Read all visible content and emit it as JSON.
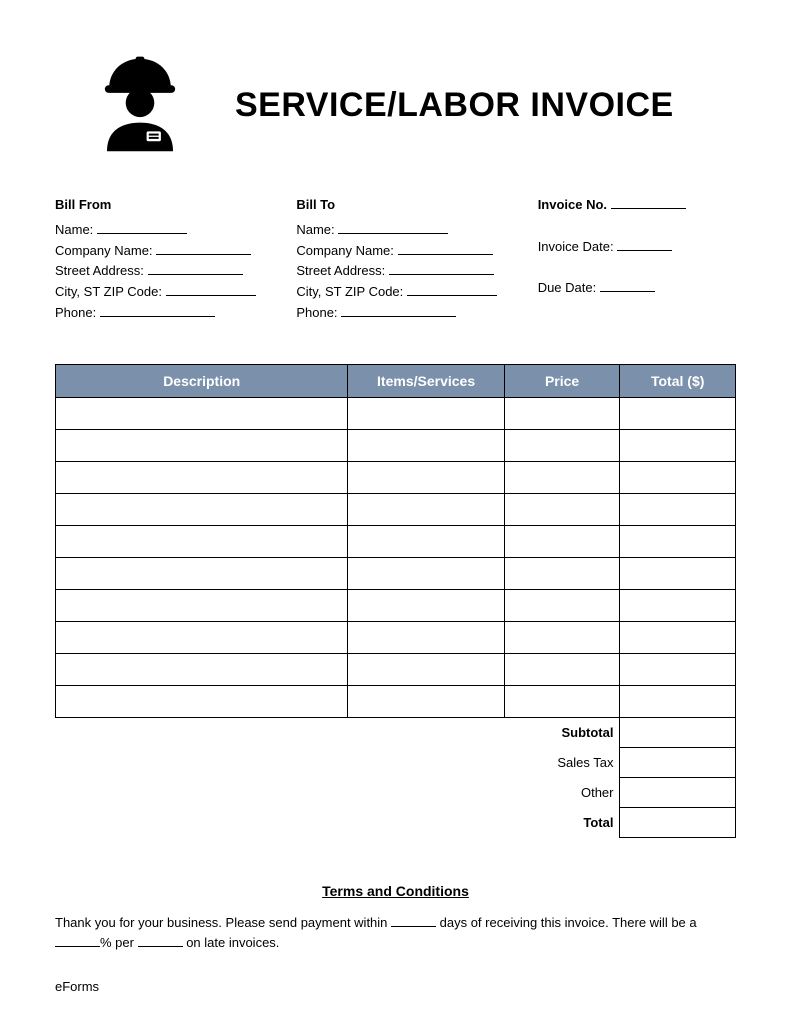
{
  "title": "SERVICE/LABOR INVOICE",
  "billFrom": {
    "heading": "Bill From",
    "nameLabel": "Name:",
    "companyLabel": "Company Name:",
    "streetLabel": "Street Address:",
    "cityLabel": "City, ST ZIP Code:",
    "phoneLabel": "Phone:"
  },
  "billTo": {
    "heading": "Bill To",
    "nameLabel": "Name:",
    "companyLabel": "Company Name:",
    "streetLabel": "Street Address:",
    "cityLabel": "City, ST ZIP Code:",
    "phoneLabel": "Phone:"
  },
  "meta": {
    "invoiceNoLabel": "Invoice No.",
    "invoiceDateLabel": "Invoice Date:",
    "dueDateLabel": "Due Date:"
  },
  "table": {
    "headers": {
      "description": "Description",
      "items": "Items/Services",
      "price": "Price",
      "total": "Total ($)"
    },
    "rowCount": 10,
    "headerBg": "#7a90ab",
    "headerFg": "#ffffff",
    "borderColor": "#000000"
  },
  "totals": {
    "subtotal": "Subtotal",
    "salesTax": "Sales Tax",
    "other": "Other",
    "total": "Total"
  },
  "terms": {
    "heading": "Terms and Conditions",
    "line1a": "Thank you for your business. Please send payment within ",
    "line1b": " days of receiving this invoice. There will be a ",
    "line1c": "% per ",
    "line1d": " on late invoices."
  },
  "footer": "eForms",
  "blankWidths": {
    "short": "55px",
    "med": "90px",
    "long": "100px",
    "phone": "115px",
    "terms": "45px"
  }
}
